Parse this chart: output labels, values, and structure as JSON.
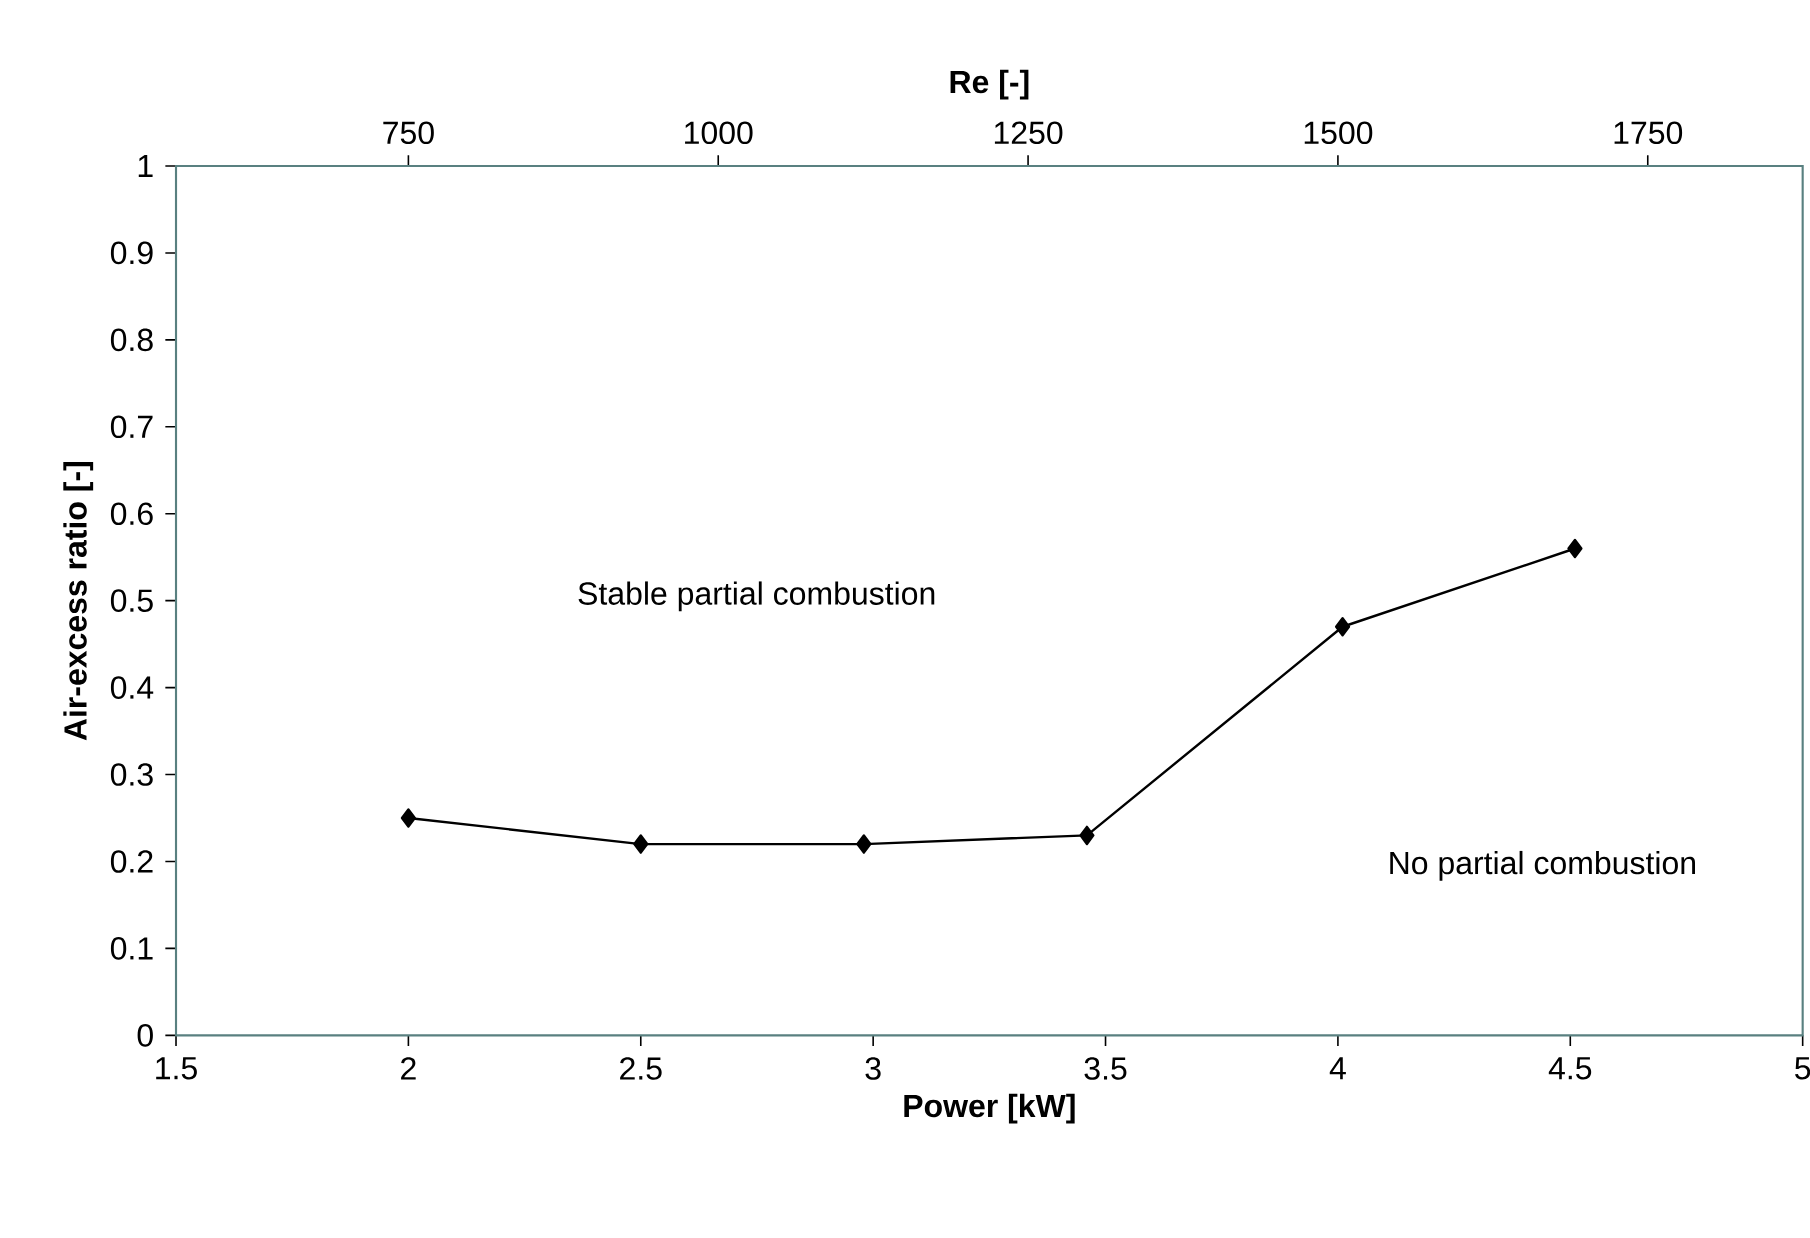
{
  "chart_data": {
    "type": "line",
    "xlabel": "Power [kW]",
    "ylabel": "Air-excess ratio [-]",
    "x2label": "Re [-]",
    "x": [
      2.0,
      2.5,
      2.98,
      3.46,
      4.01,
      4.51
    ],
    "series": [
      {
        "color": "#000000",
        "values": [
          0.25,
          0.22,
          0.22,
          0.23,
          0.47,
          0.56
        ]
      }
    ],
    "xlim": [
      1.5,
      5
    ],
    "xticks": [
      1.5,
      2,
      2.5,
      3,
      3.5,
      4,
      4.5,
      5
    ],
    "ylim": [
      0,
      1
    ],
    "yticks": [
      0,
      0.1,
      0.2,
      0.3,
      0.4,
      0.5,
      0.6,
      0.7,
      0.8,
      0.9,
      1
    ],
    "x2lim": [
      562.5,
      1875
    ],
    "x2ticks": [
      750,
      1000,
      1250,
      1500,
      1750
    ],
    "marker": "diamond",
    "line_style": "solid",
    "annotations": [
      "Stable partial combustion",
      "No partial combustion"
    ]
  }
}
